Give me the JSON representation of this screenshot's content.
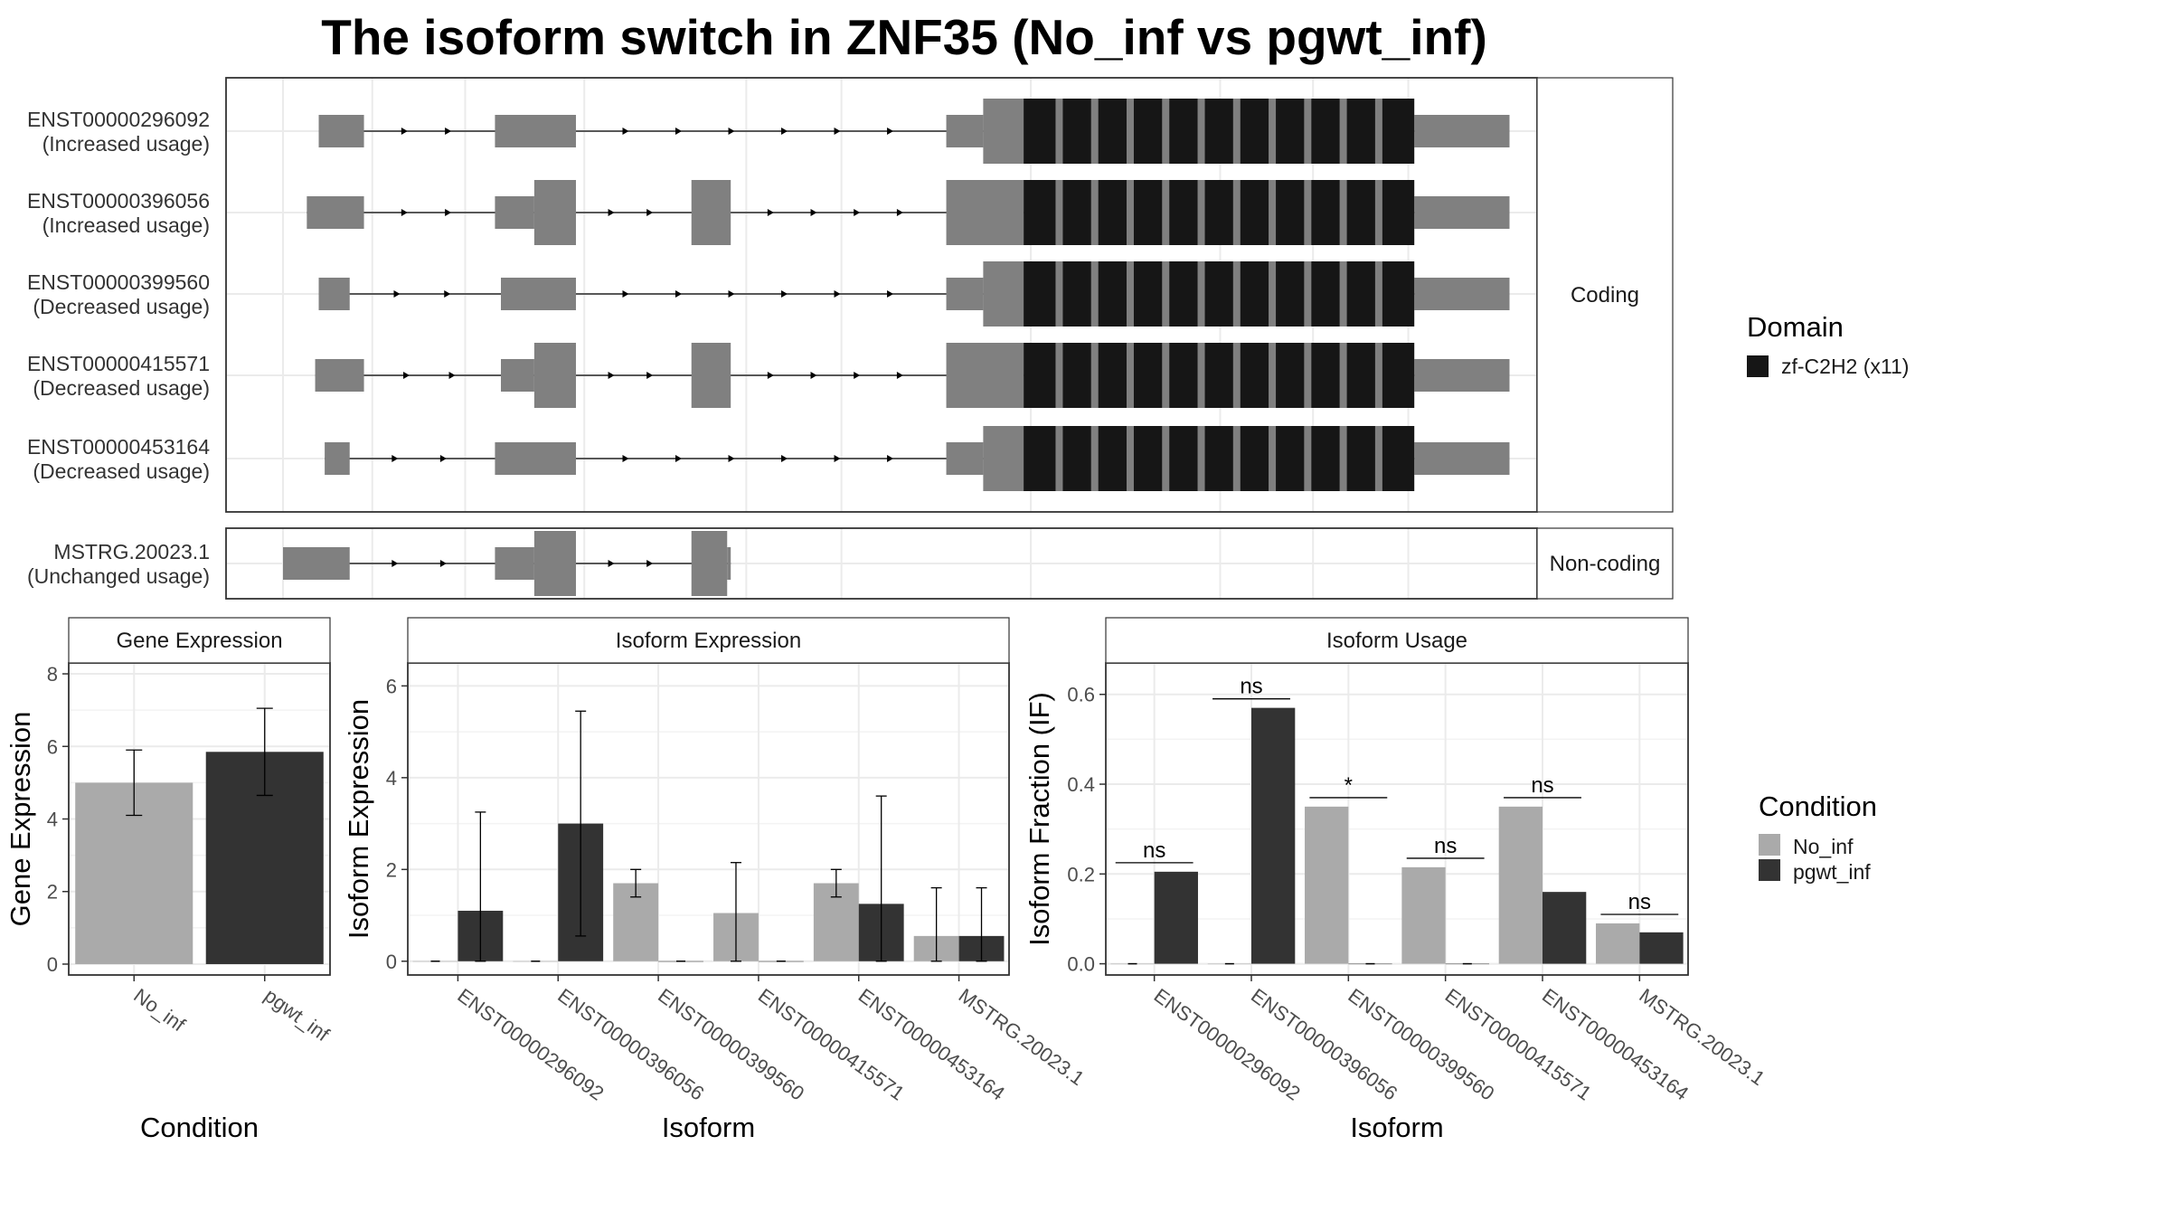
{
  "title": "The isoform switch in ZNF35 (No_inf vs pgwt_inf)",
  "colors": {
    "No_inf": "#aaaaaa",
    "pgwt_inf": "#333333",
    "exon": "#808080",
    "domain": "#161616",
    "grid": "#ebebeb",
    "strip_bg": "#ffffff"
  },
  "chart_data": [
    {
      "type": "gene-structure",
      "panels": [
        {
          "strip": "Coding",
          "transcripts": [
            {
              "id": "ENST00000296092",
              "usage": "(Increased usage)",
              "exons": [
                [
                  0.03,
                  0.068,
                  "utr"
                ],
                [
                  0.178,
                  0.246,
                  "utr"
                ],
                [
                  0.557,
                  0.588,
                  "utr"
                ],
                [
                  0.588,
                  0.95,
                  "cds"
                ],
                [
                  0.95,
                  1.03,
                  "utr"
                ]
              ],
              "domains": [
                [
                  0.622,
                  0.95
                ]
              ]
            },
            {
              "id": "ENST00000396056",
              "usage": "(Increased usage)",
              "exons": [
                [
                  0.02,
                  0.068,
                  "utr"
                ],
                [
                  0.178,
                  0.211,
                  "utr"
                ],
                [
                  0.211,
                  0.246,
                  "cds"
                ],
                [
                  0.343,
                  0.376,
                  "cds"
                ],
                [
                  0.557,
                  0.622,
                  "cds"
                ],
                [
                  0.622,
                  0.95,
                  "cds"
                ],
                [
                  0.95,
                  1.03,
                  "utr"
                ]
              ],
              "domains": [
                [
                  0.622,
                  0.95
                ]
              ]
            },
            {
              "id": "ENST00000399560",
              "usage": "(Decreased usage)",
              "exons": [
                [
                  0.03,
                  0.056,
                  "utr"
                ],
                [
                  0.183,
                  0.246,
                  "utr"
                ],
                [
                  0.557,
                  0.588,
                  "utr"
                ],
                [
                  0.588,
                  0.95,
                  "cds"
                ],
                [
                  0.95,
                  1.03,
                  "utr"
                ]
              ],
              "domains": [
                [
                  0.622,
                  0.95
                ]
              ]
            },
            {
              "id": "ENST00000415571",
              "usage": "(Decreased usage)",
              "exons": [
                [
                  0.027,
                  0.068,
                  "utr"
                ],
                [
                  0.183,
                  0.211,
                  "utr"
                ],
                [
                  0.211,
                  0.246,
                  "cds"
                ],
                [
                  0.343,
                  0.376,
                  "cds"
                ],
                [
                  0.557,
                  0.622,
                  "cds"
                ],
                [
                  0.622,
                  0.95,
                  "cds"
                ],
                [
                  0.95,
                  1.03,
                  "utr"
                ]
              ],
              "domains": [
                [
                  0.622,
                  0.95
                ]
              ]
            },
            {
              "id": "ENST00000453164",
              "usage": "(Decreased usage)",
              "exons": [
                [
                  0.035,
                  0.056,
                  "utr"
                ],
                [
                  0.178,
                  0.246,
                  "utr"
                ],
                [
                  0.557,
                  0.588,
                  "utr"
                ],
                [
                  0.588,
                  0.95,
                  "cds"
                ],
                [
                  0.95,
                  1.03,
                  "utr"
                ]
              ],
              "domains": [
                [
                  0.622,
                  0.95
                ]
              ]
            }
          ]
        },
        {
          "strip": "Non-coding",
          "transcripts": [
            {
              "id": "MSTRG.20023.1",
              "usage": "(Unchanged usage)",
              "exons": [
                [
                  0.0,
                  0.056,
                  "utr"
                ],
                [
                  0.178,
                  0.211,
                  "utr"
                ],
                [
                  0.211,
                  0.246,
                  "cds"
                ],
                [
                  0.343,
                  0.373,
                  "cds"
                ],
                [
                  0.373,
                  0.376,
                  "utr"
                ]
              ],
              "domains": []
            }
          ]
        }
      ],
      "legend": {
        "title": "Domain",
        "items": [
          "zf-C2H2 (x11)"
        ]
      }
    },
    {
      "type": "bar",
      "strip": "Gene Expression",
      "xlabel": "Condition",
      "ylabel": "Gene Expression",
      "ylim": [
        -0.3,
        8.3
      ],
      "yticks": [
        0,
        2,
        4,
        6,
        8
      ],
      "categories": [
        "No_inf",
        "pgwt_inf"
      ],
      "values": [
        5.0,
        5.85
      ],
      "errors": [
        [
          4.1,
          5.9
        ],
        [
          4.65,
          7.05
        ]
      ]
    },
    {
      "type": "bar",
      "strip": "Isoform Expression",
      "xlabel": "Isoform",
      "ylabel": "Isoform Expression",
      "ylim": [
        -0.3,
        6.5
      ],
      "yticks": [
        0,
        2,
        4,
        6
      ],
      "categories": [
        "ENST00000296092",
        "ENST00000396056",
        "ENST00000399560",
        "ENST00000415571",
        "ENST00000453164",
        "MSTRG.20023.1"
      ],
      "series": [
        {
          "name": "No_inf",
          "values": [
            0.0,
            0.0,
            1.7,
            1.05,
            1.7,
            0.55
          ],
          "errors": [
            [
              0,
              0
            ],
            [
              0,
              0
            ],
            [
              1.4,
              2.0
            ],
            [
              0,
              2.15
            ],
            [
              1.4,
              2.0
            ],
            [
              0,
              1.6
            ]
          ]
        },
        {
          "name": "pgwt_inf",
          "values": [
            1.1,
            3.0,
            0.0,
            0.0,
            1.25,
            0.55
          ],
          "errors": [
            [
              0,
              3.25
            ],
            [
              0.55,
              5.45
            ],
            [
              0,
              0
            ],
            [
              0,
              0
            ],
            [
              0,
              3.6
            ],
            [
              0,
              1.6
            ]
          ]
        }
      ]
    },
    {
      "type": "bar",
      "strip": "Isoform Usage",
      "xlabel": "Isoform",
      "ylabel": "Isoform Fraction (IF)",
      "ylim": [
        -0.025,
        0.67
      ],
      "yticks": [
        0.0,
        0.2,
        0.4,
        0.6
      ],
      "ytick_labels": [
        "0.0",
        "0.2",
        "0.4",
        "0.6"
      ],
      "categories": [
        "ENST00000296092",
        "ENST00000396056",
        "ENST00000399560",
        "ENST00000415571",
        "ENST00000453164",
        "MSTRG.20023.1"
      ],
      "series": [
        {
          "name": "No_inf",
          "values": [
            0.0,
            0.0,
            0.35,
            0.215,
            0.35,
            0.09
          ]
        },
        {
          "name": "pgwt_inf",
          "values": [
            0.205,
            0.57,
            0.0,
            0.0,
            0.16,
            0.07
          ]
        }
      ],
      "significance": [
        "ns",
        "ns",
        "*",
        "ns",
        "ns",
        "ns"
      ],
      "significance_y": [
        0.225,
        0.59,
        0.37,
        0.235,
        0.37,
        0.11
      ]
    }
  ],
  "condition_legend": {
    "title": "Condition",
    "items": [
      "No_inf",
      "pgwt_inf"
    ]
  }
}
